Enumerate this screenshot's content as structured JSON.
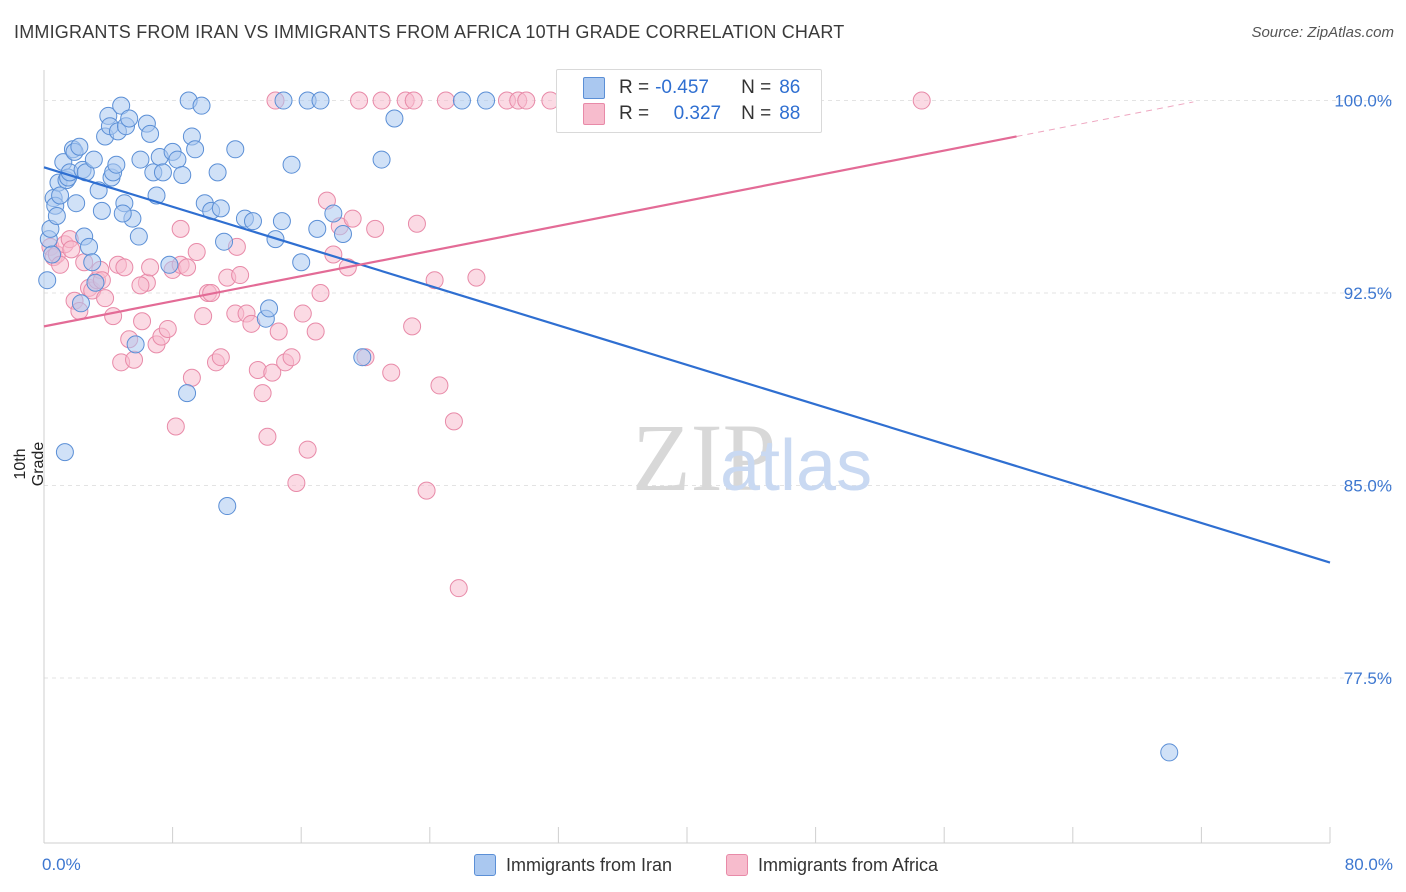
{
  "title": "IMMIGRANTS FROM IRAN VS IMMIGRANTS FROM AFRICA 10TH GRADE CORRELATION CHART",
  "source": "Source: ZipAtlas.com",
  "watermark": {
    "zip": "ZIP",
    "atlas": "atlas"
  },
  "stats": {
    "iran": {
      "r_label": "R =",
      "r_value": "-0.457",
      "n_label": "N =",
      "n_value": "86"
    },
    "africa": {
      "r_label": "R =",
      "r_value": "0.327",
      "n_label": "N =",
      "n_value": "88"
    }
  },
  "colors": {
    "iran_fill": "#aac8f0",
    "iran_stroke": "#5b8fd6",
    "iran_line": "#2f6fd1",
    "africa_fill": "#f7bccd",
    "africa_stroke": "#e88aa8",
    "africa_line": "#e36b96",
    "tick_label": "#3d77d0"
  },
  "chart_data": {
    "type": "scatter",
    "title": "IMMIGRANTS FROM IRAN VS IMMIGRANTS FROM AFRICA 10TH GRADE CORRELATION CHART",
    "xlabel": "",
    "ylabel": "10th Grade",
    "xlim": [
      0,
      80
    ],
    "ylim": [
      70.5,
      101.5
    ],
    "x_tick_labels": [
      "0.0%",
      "80.0%"
    ],
    "y_ticks": [
      77.5,
      85.0,
      92.5,
      100.0
    ],
    "y_tick_labels": [
      "77.5%",
      "85.0%",
      "92.5%",
      "100.0%"
    ],
    "grid": true,
    "legend_position": "bottom-center",
    "series": [
      {
        "name": "Immigrants from Iran",
        "trend": {
          "x": [
            0,
            80
          ],
          "y": [
            97.4,
            82.0
          ]
        },
        "points": [
          [
            0.2,
            93.0
          ],
          [
            0.3,
            94.6
          ],
          [
            0.4,
            95.0
          ],
          [
            0.5,
            94.0
          ],
          [
            0.6,
            96.2
          ],
          [
            0.7,
            95.9
          ],
          [
            0.9,
            96.8
          ],
          [
            1.0,
            96.3
          ],
          [
            1.2,
            97.6
          ],
          [
            1.4,
            96.9
          ],
          [
            1.5,
            97.0
          ],
          [
            1.6,
            97.2
          ],
          [
            1.8,
            98.1
          ],
          [
            1.9,
            98.0
          ],
          [
            2.0,
            96.0
          ],
          [
            2.2,
            98.2
          ],
          [
            2.4,
            97.3
          ],
          [
            2.5,
            94.7
          ],
          [
            2.6,
            97.2
          ],
          [
            2.8,
            94.3
          ],
          [
            3.0,
            93.7
          ],
          [
            3.1,
            97.7
          ],
          [
            3.2,
            92.9
          ],
          [
            3.4,
            96.5
          ],
          [
            3.6,
            95.7
          ],
          [
            3.8,
            98.6
          ],
          [
            4.0,
            99.4
          ],
          [
            4.1,
            99.0
          ],
          [
            4.2,
            97.0
          ],
          [
            4.3,
            97.2
          ],
          [
            4.5,
            97.5
          ],
          [
            4.6,
            98.8
          ],
          [
            4.8,
            99.8
          ],
          [
            5.0,
            96.0
          ],
          [
            5.1,
            99.0
          ],
          [
            5.3,
            99.3
          ],
          [
            5.5,
            95.4
          ],
          [
            5.7,
            90.5
          ],
          [
            6.0,
            97.7
          ],
          [
            6.4,
            99.1
          ],
          [
            6.6,
            98.7
          ],
          [
            6.8,
            97.2
          ],
          [
            7.2,
            97.8
          ],
          [
            7.4,
            97.2
          ],
          [
            7.8,
            93.6
          ],
          [
            8.0,
            98.0
          ],
          [
            8.3,
            97.7
          ],
          [
            8.6,
            97.1
          ],
          [
            8.9,
            88.6
          ],
          [
            9.0,
            100.0
          ],
          [
            9.2,
            98.6
          ],
          [
            9.4,
            98.1
          ],
          [
            10.0,
            96.0
          ],
          [
            10.4,
            95.7
          ],
          [
            10.8,
            97.2
          ],
          [
            11.0,
            95.8
          ],
          [
            11.4,
            84.2
          ],
          [
            11.9,
            98.1
          ],
          [
            12.5,
            95.4
          ],
          [
            13.0,
            95.3
          ],
          [
            13.8,
            91.5
          ],
          [
            14.8,
            95.3
          ],
          [
            15.4,
            97.5
          ],
          [
            16.0,
            93.7
          ],
          [
            17.0,
            95.0
          ],
          [
            18.0,
            95.6
          ],
          [
            18.6,
            94.8
          ],
          [
            19.8,
            90.0
          ],
          [
            21.0,
            97.7
          ],
          [
            21.8,
            99.3
          ],
          [
            26.0,
            100.0
          ],
          [
            27.5,
            100.0
          ],
          [
            14.0,
            91.9
          ],
          [
            14.4,
            94.6
          ],
          [
            11.2,
            94.5
          ],
          [
            9.8,
            99.8
          ],
          [
            16.4,
            100.0
          ],
          [
            17.2,
            100.0
          ],
          [
            14.9,
            100.0
          ],
          [
            7.0,
            96.3
          ],
          [
            5.9,
            94.7
          ],
          [
            4.9,
            95.6
          ],
          [
            1.3,
            86.3
          ],
          [
            2.3,
            92.1
          ],
          [
            70.0,
            74.6
          ],
          [
            0.8,
            95.5
          ]
        ]
      },
      {
        "name": "Immigrants from Africa",
        "trend": {
          "x": [
            0,
            60.5
          ],
          "y": [
            91.2,
            98.6
          ]
        },
        "points": [
          [
            0.4,
            94.3
          ],
          [
            0.6,
            93.9
          ],
          [
            0.8,
            94.0
          ],
          [
            1.0,
            93.6
          ],
          [
            1.3,
            94.4
          ],
          [
            1.6,
            94.6
          ],
          [
            1.9,
            92.2
          ],
          [
            2.2,
            91.8
          ],
          [
            2.5,
            93.7
          ],
          [
            2.8,
            92.7
          ],
          [
            3.0,
            92.6
          ],
          [
            3.3,
            93.0
          ],
          [
            3.5,
            93.4
          ],
          [
            3.8,
            92.3
          ],
          [
            4.3,
            91.6
          ],
          [
            4.6,
            93.6
          ],
          [
            4.8,
            89.8
          ],
          [
            5.0,
            93.5
          ],
          [
            5.3,
            90.7
          ],
          [
            5.6,
            89.9
          ],
          [
            6.1,
            91.4
          ],
          [
            6.4,
            92.9
          ],
          [
            6.6,
            93.5
          ],
          [
            7.0,
            90.5
          ],
          [
            7.3,
            90.8
          ],
          [
            7.7,
            91.1
          ],
          [
            8.0,
            93.4
          ],
          [
            8.2,
            87.3
          ],
          [
            8.5,
            93.6
          ],
          [
            8.9,
            93.5
          ],
          [
            9.2,
            89.2
          ],
          [
            9.5,
            94.1
          ],
          [
            9.9,
            91.6
          ],
          [
            10.2,
            92.5
          ],
          [
            10.4,
            92.5
          ],
          [
            10.7,
            89.8
          ],
          [
            11.0,
            90.0
          ],
          [
            11.4,
            93.1
          ],
          [
            11.9,
            91.7
          ],
          [
            12.2,
            93.2
          ],
          [
            12.6,
            91.7
          ],
          [
            12.9,
            91.3
          ],
          [
            13.3,
            89.5
          ],
          [
            13.6,
            88.6
          ],
          [
            13.9,
            86.9
          ],
          [
            14.2,
            89.4
          ],
          [
            14.6,
            91.0
          ],
          [
            15.0,
            89.8
          ],
          [
            15.4,
            90.0
          ],
          [
            15.7,
            85.1
          ],
          [
            16.1,
            91.7
          ],
          [
            16.4,
            86.4
          ],
          [
            16.9,
            91.0
          ],
          [
            17.2,
            92.5
          ],
          [
            17.6,
            96.1
          ],
          [
            18.0,
            94.0
          ],
          [
            18.4,
            95.1
          ],
          [
            18.9,
            93.5
          ],
          [
            19.2,
            95.4
          ],
          [
            19.6,
            100.0
          ],
          [
            20.0,
            90.0
          ],
          [
            20.6,
            95.0
          ],
          [
            21.0,
            100.0
          ],
          [
            21.6,
            89.4
          ],
          [
            22.5,
            100.0
          ],
          [
            22.9,
            91.2
          ],
          [
            23.2,
            95.2
          ],
          [
            23.8,
            84.8
          ],
          [
            24.3,
            93.0
          ],
          [
            24.6,
            88.9
          ],
          [
            25.0,
            100.0
          ],
          [
            25.5,
            87.5
          ],
          [
            25.8,
            81.0
          ],
          [
            26.9,
            93.1
          ],
          [
            28.8,
            100.0
          ],
          [
            29.5,
            100.0
          ],
          [
            30.0,
            100.0
          ],
          [
            31.5,
            100.0
          ],
          [
            34.5,
            100.0
          ],
          [
            40.2,
            100.0
          ],
          [
            54.6,
            100.0
          ],
          [
            14.4,
            100.0
          ],
          [
            8.5,
            95.0
          ],
          [
            12.0,
            94.3
          ],
          [
            6.0,
            92.8
          ],
          [
            3.6,
            93.0
          ],
          [
            1.7,
            94.2
          ],
          [
            23.0,
            100.0
          ]
        ]
      }
    ]
  },
  "legend": {
    "iran": "Immigrants from Iran",
    "africa": "Immigrants from Africa"
  }
}
